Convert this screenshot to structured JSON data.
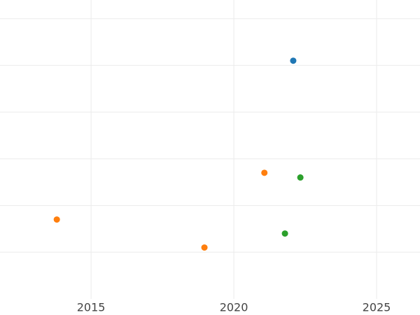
{
  "chart_data": {
    "type": "scatter",
    "xlim": [
      2011.81,
      2026.52
    ],
    "xticks": [
      2015,
      2020,
      2025
    ],
    "ylim": [
      -1,
      5.4
    ],
    "ygrid": [
      0,
      1,
      2,
      3,
      4,
      5
    ],
    "grid": true,
    "series": [
      {
        "color": "#1f77b4",
        "x": [
          2022.08
        ],
        "values": [
          4.1
        ]
      },
      {
        "color": "#ff7f0e",
        "x": [
          2021.07,
          2013.8,
          2018.97
        ],
        "values": [
          1.7,
          0.7,
          0.1
        ]
      },
      {
        "color": "#2ca02c",
        "x": [
          2022.33,
          2021.79
        ],
        "values": [
          1.6,
          0.4
        ]
      }
    ]
  }
}
